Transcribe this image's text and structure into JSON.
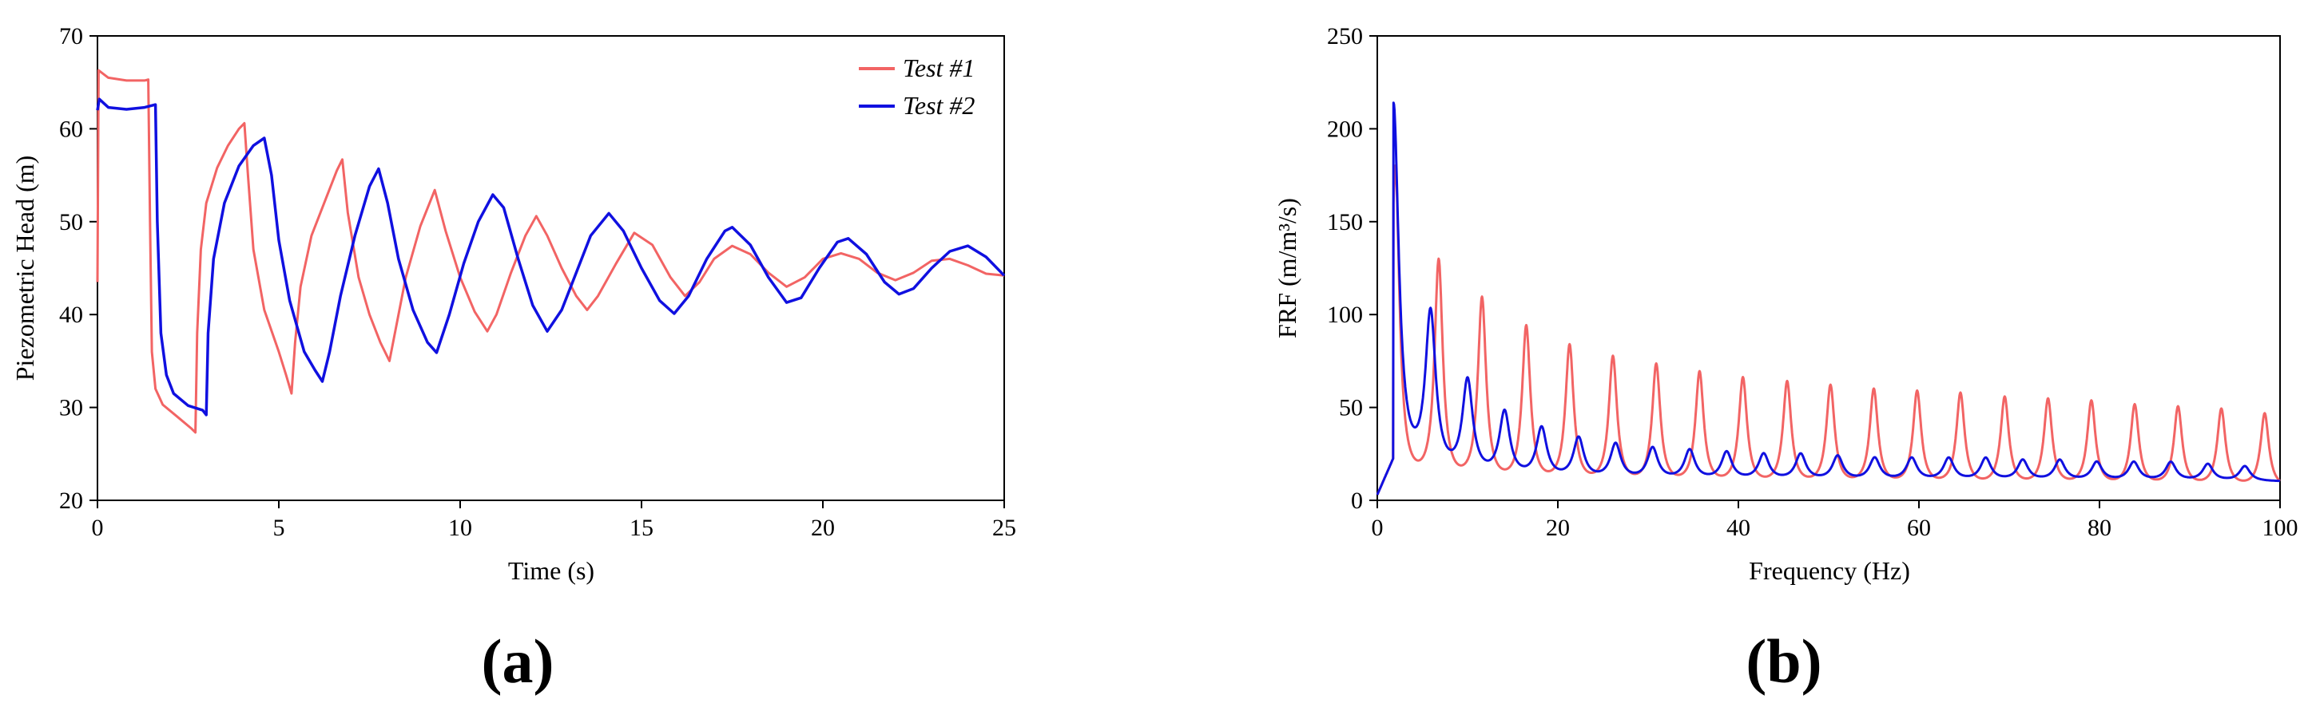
{
  "chart_data": [
    {
      "panel": "(a)",
      "type": "line",
      "xlabel": "Time (s)",
      "ylabel": "Piezometric Head (m)",
      "xlim": [
        0,
        25
      ],
      "ylim": [
        20,
        70
      ],
      "xticks": [
        0,
        5,
        10,
        15,
        20,
        25
      ],
      "yticks": [
        20,
        30,
        40,
        50,
        60,
        70
      ],
      "legend_position": "top-right",
      "series": [
        {
          "name": "Test #1",
          "color": "#f26464",
          "points": [
            [
              0.0,
              43.5
            ],
            [
              0.03,
              66.3
            ],
            [
              0.3,
              65.5
            ],
            [
              0.8,
              65.2
            ],
            [
              1.3,
              65.2
            ],
            [
              1.4,
              65.3
            ],
            [
              1.45,
              50.0
            ],
            [
              1.5,
              36.0
            ],
            [
              1.6,
              32.0
            ],
            [
              1.8,
              30.3
            ],
            [
              2.2,
              29.0
            ],
            [
              2.6,
              27.7
            ],
            [
              2.7,
              27.3
            ],
            [
              2.75,
              38.0
            ],
            [
              2.85,
              47.0
            ],
            [
              3.0,
              52.0
            ],
            [
              3.3,
              55.8
            ],
            [
              3.6,
              58.2
            ],
            [
              3.9,
              60.0
            ],
            [
              4.05,
              60.6
            ],
            [
              4.15,
              55.0
            ],
            [
              4.3,
              47.0
            ],
            [
              4.6,
              40.5
            ],
            [
              5.0,
              36.0
            ],
            [
              5.2,
              33.5
            ],
            [
              5.35,
              31.5
            ],
            [
              5.45,
              37.0
            ],
            [
              5.6,
              43.0
            ],
            [
              5.9,
              48.5
            ],
            [
              6.3,
              52.5
            ],
            [
              6.6,
              55.5
            ],
            [
              6.75,
              56.7
            ],
            [
              6.9,
              51.0
            ],
            [
              7.2,
              44.0
            ],
            [
              7.5,
              40.0
            ],
            [
              7.8,
              37.0
            ],
            [
              8.05,
              35.0
            ],
            [
              8.2,
              38.0
            ],
            [
              8.5,
              44.0
            ],
            [
              8.9,
              49.5
            ],
            [
              9.3,
              53.4
            ],
            [
              9.6,
              49.0
            ],
            [
              10.0,
              44.0
            ],
            [
              10.4,
              40.3
            ],
            [
              10.75,
              38.2
            ],
            [
              11.0,
              40.0
            ],
            [
              11.4,
              44.5
            ],
            [
              11.8,
              48.5
            ],
            [
              12.1,
              50.6
            ],
            [
              12.4,
              48.5
            ],
            [
              12.8,
              45.0
            ],
            [
              13.2,
              42.0
            ],
            [
              13.5,
              40.5
            ],
            [
              13.8,
              42.0
            ],
            [
              14.3,
              45.5
            ],
            [
              14.8,
              48.8
            ],
            [
              15.3,
              47.5
            ],
            [
              15.8,
              44.0
            ],
            [
              16.2,
              42.0
            ],
            [
              16.6,
              43.5
            ],
            [
              17.0,
              46.0
            ],
            [
              17.5,
              47.4
            ],
            [
              18.0,
              46.5
            ],
            [
              18.5,
              44.5
            ],
            [
              19.0,
              43.0
            ],
            [
              19.5,
              44.0
            ],
            [
              20.0,
              46.0
            ],
            [
              20.5,
              46.6
            ],
            [
              21.0,
              46.0
            ],
            [
              21.5,
              44.5
            ],
            [
              22.0,
              43.7
            ],
            [
              22.5,
              44.5
            ],
            [
              23.0,
              45.8
            ],
            [
              23.5,
              46.0
            ],
            [
              24.0,
              45.3
            ],
            [
              24.5,
              44.4
            ],
            [
              25.0,
              44.2
            ]
          ]
        },
        {
          "name": "Test #2",
          "color": "#1010e0",
          "points": [
            [
              0.0,
              62.0
            ],
            [
              0.05,
              63.2
            ],
            [
              0.3,
              62.3
            ],
            [
              0.8,
              62.1
            ],
            [
              1.3,
              62.3
            ],
            [
              1.6,
              62.6
            ],
            [
              1.65,
              50.0
            ],
            [
              1.75,
              38.0
            ],
            [
              1.9,
              33.5
            ],
            [
              2.1,
              31.5
            ],
            [
              2.5,
              30.2
            ],
            [
              2.9,
              29.7
            ],
            [
              3.0,
              29.2
            ],
            [
              3.05,
              38.0
            ],
            [
              3.2,
              46.0
            ],
            [
              3.5,
              52.0
            ],
            [
              3.9,
              56.0
            ],
            [
              4.3,
              58.2
            ],
            [
              4.6,
              59.0
            ],
            [
              4.8,
              55.0
            ],
            [
              5.0,
              48.0
            ],
            [
              5.3,
              41.5
            ],
            [
              5.7,
              36.0
            ],
            [
              6.0,
              34.0
            ],
            [
              6.2,
              32.8
            ],
            [
              6.4,
              36.0
            ],
            [
              6.7,
              42.0
            ],
            [
              7.1,
              48.5
            ],
            [
              7.5,
              53.8
            ],
            [
              7.75,
              55.7
            ],
            [
              8.0,
              52.0
            ],
            [
              8.3,
              46.0
            ],
            [
              8.7,
              40.5
            ],
            [
              9.1,
              37.0
            ],
            [
              9.35,
              35.9
            ],
            [
              9.7,
              40.0
            ],
            [
              10.1,
              45.5
            ],
            [
              10.5,
              50.0
            ],
            [
              10.9,
              52.9
            ],
            [
              11.2,
              51.5
            ],
            [
              11.6,
              46.0
            ],
            [
              12.0,
              41.0
            ],
            [
              12.4,
              38.2
            ],
            [
              12.8,
              40.5
            ],
            [
              13.2,
              44.5
            ],
            [
              13.6,
              48.5
            ],
            [
              14.1,
              50.9
            ],
            [
              14.5,
              49.0
            ],
            [
              15.0,
              45.0
            ],
            [
              15.5,
              41.5
            ],
            [
              15.9,
              40.1
            ],
            [
              16.3,
              42.0
            ],
            [
              16.8,
              46.0
            ],
            [
              17.3,
              49.0
            ],
            [
              17.5,
              49.4
            ],
            [
              18.0,
              47.5
            ],
            [
              18.5,
              44.0
            ],
            [
              19.0,
              41.3
            ],
            [
              19.4,
              41.8
            ],
            [
              19.9,
              45.0
            ],
            [
              20.4,
              47.8
            ],
            [
              20.7,
              48.2
            ],
            [
              21.2,
              46.5
            ],
            [
              21.7,
              43.5
            ],
            [
              22.1,
              42.2
            ],
            [
              22.5,
              42.8
            ],
            [
              23.0,
              45.0
            ],
            [
              23.5,
              46.8
            ],
            [
              24.0,
              47.4
            ],
            [
              24.5,
              46.2
            ],
            [
              25.0,
              44.2
            ]
          ]
        }
      ],
      "legend": [
        {
          "label": "Test #1",
          "color": "#f26464"
        },
        {
          "label": "Test #2",
          "color": "#1010e0"
        }
      ]
    },
    {
      "panel": "(b)",
      "type": "line",
      "xlabel": "Frequency (Hz)",
      "ylabel": "FRF (m/m³/s)",
      "xlim": [
        0,
        100
      ],
      "ylim": [
        0,
        250
      ],
      "xticks": [
        0,
        20,
        40,
        60,
        80,
        100
      ],
      "yticks": [
        0,
        50,
        100,
        150,
        200,
        250
      ],
      "series": [
        {
          "name": "Test #1",
          "color": "#f26464",
          "baseline_start": 3,
          "baseline_min": 6,
          "peaks": [
            [
              2.0,
              178
            ],
            [
              6.8,
              126
            ],
            [
              11.6,
              106
            ],
            [
              16.5,
              91
            ],
            [
              21.3,
              81
            ],
            [
              26.1,
              75
            ],
            [
              30.9,
              71
            ],
            [
              35.7,
              67
            ],
            [
              40.5,
              64
            ],
            [
              45.4,
              62
            ],
            [
              50.2,
              60
            ],
            [
              55.0,
              58
            ],
            [
              59.8,
              57
            ],
            [
              64.6,
              56
            ],
            [
              69.5,
              54
            ],
            [
              74.3,
              53
            ],
            [
              79.1,
              52
            ],
            [
              83.9,
              50
            ],
            [
              88.7,
              49
            ],
            [
              93.5,
              48
            ],
            [
              98.3,
              46
            ]
          ]
        },
        {
          "name": "Test #2",
          "color": "#1010e0",
          "baseline_start": 3,
          "baseline_min": 10,
          "peaks": [
            [
              1.8,
              211
            ],
            [
              5.9,
              96
            ],
            [
              10.0,
              61
            ],
            [
              14.1,
              45
            ],
            [
              18.2,
              37
            ],
            [
              22.3,
              32
            ],
            [
              26.4,
              29
            ],
            [
              30.5,
              27
            ],
            [
              34.6,
              26
            ],
            [
              38.7,
              25
            ],
            [
              42.8,
              24
            ],
            [
              46.9,
              24
            ],
            [
              51.0,
              23
            ],
            [
              55.1,
              22
            ],
            [
              59.2,
              22
            ],
            [
              63.3,
              22
            ],
            [
              67.4,
              22
            ],
            [
              71.5,
              21
            ],
            [
              75.6,
              21
            ],
            [
              79.7,
              20
            ],
            [
              83.8,
              20
            ],
            [
              87.9,
              20
            ],
            [
              92.0,
              19
            ],
            [
              96.1,
              18
            ]
          ]
        }
      ]
    }
  ],
  "panel_labels": {
    "a": "(a)",
    "b": "(b)"
  }
}
